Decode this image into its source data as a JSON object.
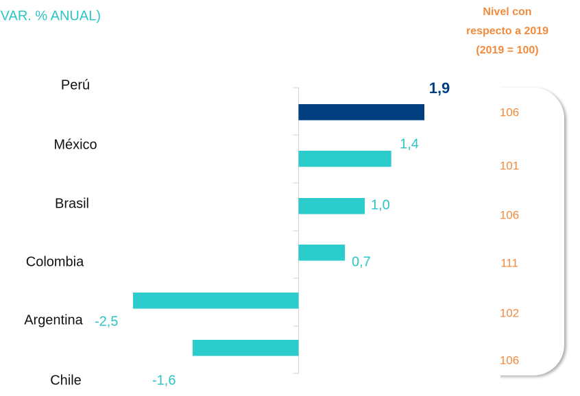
{
  "chart_data": {
    "type": "hbar",
    "title": "(VAR. % ANUAL)",
    "categories": [
      "Perú",
      "México",
      "Brasil",
      "Colombia",
      "Argentina",
      "Chile"
    ],
    "values": [
      1.9,
      1.4,
      1.0,
      0.7,
      -2.5,
      -1.6
    ],
    "value_labels": [
      "1,9",
      "1,4",
      "1,0",
      "0,7",
      "-2,5",
      "-1,6"
    ],
    "colors": [
      "#003f80",
      "#2ccccc",
      "#2ccccc",
      "#2ccccc",
      "#2ccccc",
      "#2ccccc"
    ],
    "xlim": [
      -2.5,
      1.9
    ],
    "side_panel": {
      "title": [
        "Nivel con",
        "respecto a 2019",
        "(2019 = 100)"
      ],
      "values": [
        106,
        101,
        106,
        111,
        102,
        106
      ],
      "color": "#f08a3c"
    }
  }
}
